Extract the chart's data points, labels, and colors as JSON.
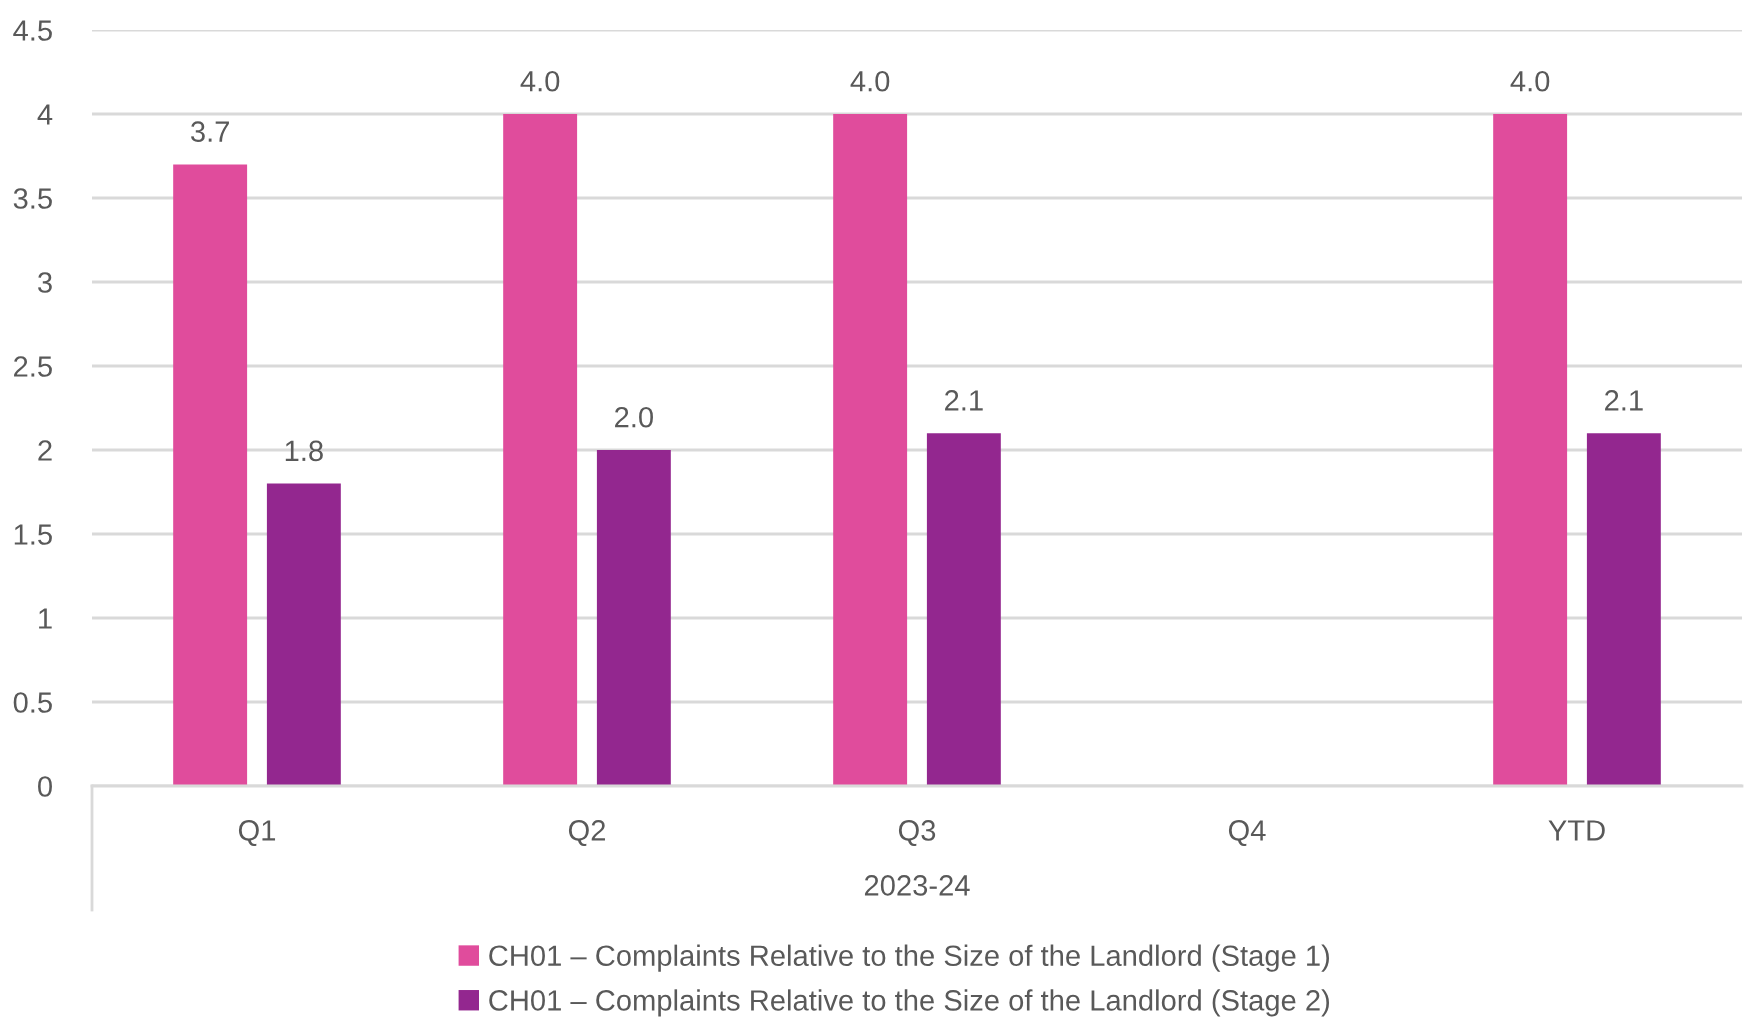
{
  "chart_data": {
    "type": "bar",
    "categories": [
      "Q1",
      "Q2",
      "Q3",
      "Q4",
      "YTD"
    ],
    "xlabel": "2023-24",
    "series": [
      {
        "name": "CH01 – Complaints Relative to the Size of the Landlord (Stage 1)",
        "color": "#e04c9c",
        "values": [
          3.7,
          4.0,
          4.0,
          null,
          4.0
        ],
        "value_labels": [
          "3.7",
          "4.0",
          "4.0",
          null,
          "4.0"
        ]
      },
      {
        "name": "CH01 – Complaints Relative to the Size of the Landlord (Stage 2)",
        "color": "#93278f",
        "values": [
          1.8,
          2.0,
          2.1,
          null,
          2.1
        ],
        "value_labels": [
          "1.8",
          "2.0",
          "2.1",
          null,
          "2.1"
        ]
      }
    ],
    "ylim": [
      0,
      4.5
    ],
    "yticks": [
      0,
      0.5,
      1,
      1.5,
      2,
      2.5,
      3,
      3.5,
      4,
      4.5
    ],
    "grid": "y",
    "legend": "bottom"
  }
}
